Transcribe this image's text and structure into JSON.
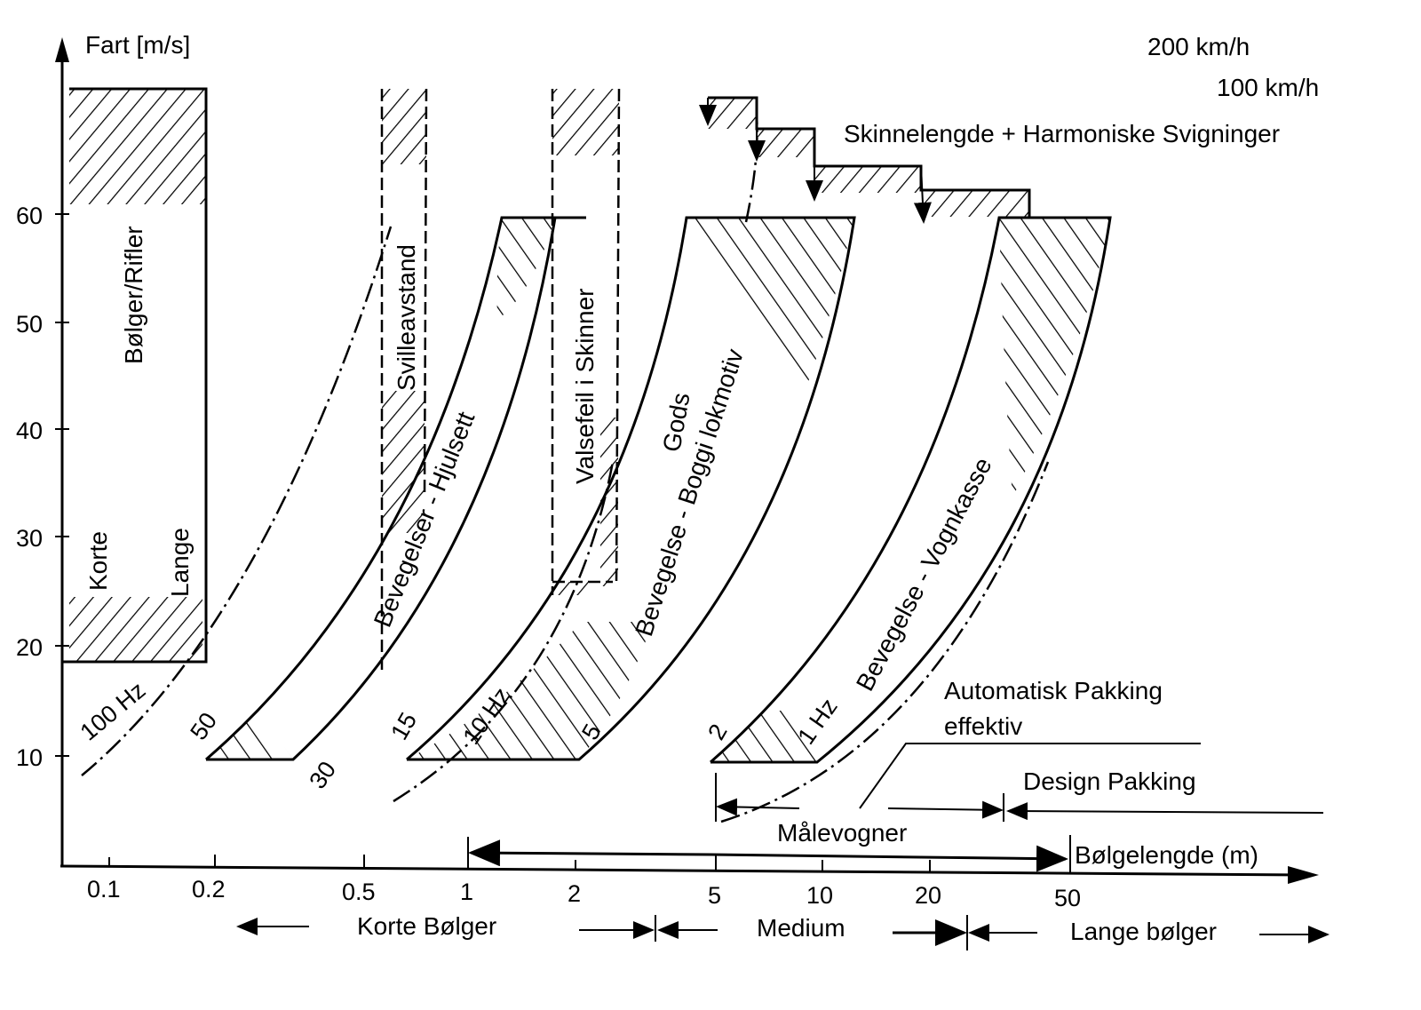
{
  "axes": {
    "y_label": "Fart [m/s]",
    "y_ticks": [
      "10",
      "20",
      "30",
      "40",
      "50",
      "60"
    ],
    "x_label": "Bølgelengde (m)",
    "x_ticks": [
      "0.1",
      "0.2",
      "0.5",
      "1",
      "2",
      "5",
      "10",
      "20",
      "50"
    ],
    "x_scale": "log"
  },
  "speed_labels": {
    "kmh200": "200 km/h",
    "kmh100": "100 km/h"
  },
  "regions": {
    "rifler": "Bølger/Rifler",
    "korte": "Korte",
    "lange": "Lange",
    "sville": "Svilleavstand",
    "valsefeil": "Valsefeil i Skinner",
    "hjulsett": "Bevegelser - Hjulsett",
    "gods": "Gods",
    "boggi": "Bevegelse - Boggi lokmotiv",
    "vognkasse": "Bevegelse - Vognkasse",
    "skinnelengde": "Skinnelengde + Harmoniske Svigninger"
  },
  "frequencies": {
    "f100": "100 Hz",
    "f50": "50",
    "f30": "30",
    "f15": "15",
    "f10": "10 Hz",
    "f5": "5",
    "f2": "2",
    "f1": "1 Hz"
  },
  "ranges": {
    "auto_pakking_1": "Automatisk Pakking",
    "auto_pakking_2": "effektiv",
    "design_pakking": "Design Pakking",
    "malevogner": "Målevogner"
  },
  "bands": {
    "korte": "Korte Bølger",
    "medium": "Medium",
    "lange": "Lange bølger"
  }
}
